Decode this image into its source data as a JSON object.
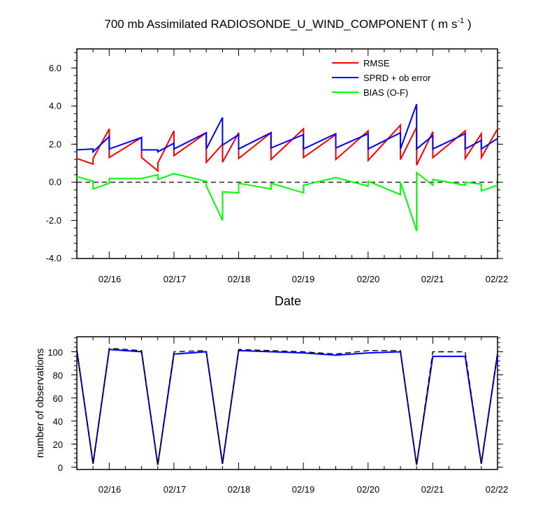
{
  "header": {
    "title_main": "700 mb Assimilated RADIOSONDE_U_WIND_COMPONENT ( m s",
    "title_sup": "-1",
    "title_end": " )"
  },
  "top_panel": {
    "xlabel": "Date",
    "ytick_labels": [
      "6.0",
      "4.0",
      "2.0",
      "0.0",
      "-2.0",
      "-4.0"
    ],
    "xtick_labels": [
      "02/16",
      "02/17",
      "02/18",
      "02/19",
      "02/20",
      "02/21",
      "02/22"
    ]
  },
  "bottom_panel": {
    "ylabel": "number of observations",
    "ytick_labels": [
      "100",
      "80",
      "60",
      "40",
      "20",
      "0"
    ],
    "xtick_labels": [
      "02/16",
      "02/17",
      "02/18",
      "02/19",
      "02/20",
      "02/21",
      "02/22"
    ]
  },
  "legend": [
    {
      "label": "RMSE",
      "color": "#ff0000"
    },
    {
      "label": "SPRD + ob error",
      "color": "#0000ff"
    },
    {
      "label": "BIAS (O-F)",
      "color": "#00ff00"
    }
  ],
  "colors": {
    "rmse": "#ff0000",
    "sprd": "#0000ff",
    "bias": "#00ff00",
    "reference": "#000000"
  },
  "chart_data": [
    {
      "type": "line",
      "title": "700 mb Assimilated RADIOSONDE_U_WIND_COMPONENT ( m s-1 )",
      "xlabel": "Date",
      "ylabel": "",
      "xlim": [
        "02/15 12:00",
        "02/22 00:00"
      ],
      "ylim": [
        -4.0,
        7.0
      ],
      "legend_position": "top-right",
      "reference_line": {
        "y": 0.0,
        "style": "dashed"
      },
      "series": [
        {
          "name": "RMSE",
          "color": "#ff0000",
          "points": [
            [
              "02/15 12:00",
              1.25
            ],
            [
              "02/15 18:00",
              0.95
            ],
            [
              "02/15 18:00",
              1.25
            ],
            [
              "02/16 00:00",
              2.8
            ],
            [
              "02/16 00:00",
              1.3
            ],
            [
              "02/16 12:00",
              2.35
            ],
            [
              "02/16 12:00",
              1.3
            ],
            [
              "02/16 18:00",
              0.6
            ],
            [
              "02/16 18:00",
              1.0
            ],
            [
              "02/17 00:00",
              2.7
            ],
            [
              "02/17 00:00",
              1.4
            ],
            [
              "02/17 12:00",
              2.6
            ],
            [
              "02/17 12:00",
              1.05
            ],
            [
              "02/17 18:00",
              2.0
            ],
            [
              "02/17 18:00",
              1.05
            ],
            [
              "02/18 00:00",
              2.6
            ],
            [
              "02/18 00:00",
              1.25
            ],
            [
              "02/18 12:00",
              2.6
            ],
            [
              "02/18 12:00",
              1.2
            ],
            [
              "02/19 00:00",
              2.8
            ],
            [
              "02/19 00:00",
              1.3
            ],
            [
              "02/19 12:00",
              2.5
            ],
            [
              "02/19 12:00",
              1.2
            ],
            [
              "02/20 00:00",
              2.7
            ],
            [
              "02/20 00:00",
              1.15
            ],
            [
              "02/20 12:00",
              3.0
            ],
            [
              "02/20 12:00",
              1.2
            ],
            [
              "02/20 18:00",
              2.9
            ],
            [
              "02/20 18:00",
              0.9
            ],
            [
              "02/21 00:00",
              2.65
            ],
            [
              "02/21 00:00",
              1.3
            ],
            [
              "02/21 12:00",
              2.7
            ],
            [
              "02/21 12:00",
              1.25
            ],
            [
              "02/21 18:00",
              2.55
            ],
            [
              "02/21 18:00",
              1.3
            ],
            [
              "02/22 00:00",
              2.8
            ]
          ]
        },
        {
          "name": "SPRD + ob error",
          "color": "#0000ff",
          "points": [
            [
              "02/15 12:00",
              1.7
            ],
            [
              "02/15 18:00",
              1.75
            ],
            [
              "02/15 18:00",
              1.6
            ],
            [
              "02/16 00:00",
              2.4
            ],
            [
              "02/16 00:00",
              1.75
            ],
            [
              "02/16 12:00",
              2.35
            ],
            [
              "02/16 12:00",
              1.7
            ],
            [
              "02/16 18:00",
              1.7
            ],
            [
              "02/16 18:00",
              1.6
            ],
            [
              "02/17 00:00",
              2.05
            ],
            [
              "02/17 00:00",
              1.75
            ],
            [
              "02/17 12:00",
              2.6
            ],
            [
              "02/17 12:00",
              1.75
            ],
            [
              "02/17 18:00",
              3.4
            ],
            [
              "02/17 18:00",
              1.95
            ],
            [
              "02/18 00:00",
              2.5
            ],
            [
              "02/18 00:00",
              1.75
            ],
            [
              "02/18 12:00",
              2.6
            ],
            [
              "02/18 12:00",
              1.8
            ],
            [
              "02/19 00:00",
              2.5
            ],
            [
              "02/19 00:00",
              1.75
            ],
            [
              "02/19 12:00",
              2.55
            ],
            [
              "02/19 12:00",
              1.8
            ],
            [
              "02/20 00:00",
              2.55
            ],
            [
              "02/20 00:00",
              1.75
            ],
            [
              "02/20 12:00",
              2.6
            ],
            [
              "02/20 12:00",
              1.75
            ],
            [
              "02/20 18:00",
              4.1
            ],
            [
              "02/20 18:00",
              1.75
            ],
            [
              "02/21 00:00",
              2.45
            ],
            [
              "02/21 00:00",
              1.75
            ],
            [
              "02/21 12:00",
              2.55
            ],
            [
              "02/21 12:00",
              1.75
            ],
            [
              "02/21 18:00",
              2.2
            ],
            [
              "02/21 18:00",
              1.75
            ],
            [
              "02/22 00:00",
              2.3
            ]
          ]
        },
        {
          "name": "BIAS (O-F)",
          "color": "#00ff00",
          "points": [
            [
              "02/15 12:00",
              0.3
            ],
            [
              "02/15 18:00",
              0.05
            ],
            [
              "02/15 18:00",
              -0.35
            ],
            [
              "02/16 00:00",
              -0.05
            ],
            [
              "02/16 00:00",
              0.2
            ],
            [
              "02/16 12:00",
              0.2
            ],
            [
              "02/16 18:00",
              0.4
            ],
            [
              "02/16 18:00",
              0.15
            ],
            [
              "02/17 00:00",
              0.45
            ],
            [
              "02/17 12:00",
              0.05
            ],
            [
              "02/17 12:00",
              -0.2
            ],
            [
              "02/17 18:00",
              -2.0
            ],
            [
              "02/17 18:00",
              -0.5
            ],
            [
              "02/18 00:00",
              -0.55
            ],
            [
              "02/18 00:00",
              -0.05
            ],
            [
              "02/18 12:00",
              -0.35
            ],
            [
              "02/18 12:00",
              -0.05
            ],
            [
              "02/19 00:00",
              -0.55
            ],
            [
              "02/19 00:00",
              -0.15
            ],
            [
              "02/19 12:00",
              0.25
            ],
            [
              "02/20 00:00",
              -0.2
            ],
            [
              "02/20 00:00",
              0.05
            ],
            [
              "02/20 12:00",
              -0.65
            ],
            [
              "02/20 12:00",
              0.0
            ],
            [
              "02/20 18:00",
              -2.55
            ],
            [
              "02/20 18:00",
              0.5
            ],
            [
              "02/21 00:00",
              -0.15
            ],
            [
              "02/21 00:00",
              0.15
            ],
            [
              "02/21 12:00",
              -0.15
            ],
            [
              "02/21 12:00",
              0.0
            ],
            [
              "02/21 18:00",
              -0.1
            ],
            [
              "02/21 18:00",
              -0.45
            ],
            [
              "02/22 00:00",
              -0.15
            ]
          ]
        }
      ]
    },
    {
      "type": "line",
      "title": "",
      "xlabel": "",
      "ylabel": "number of observations",
      "xlim": [
        "02/15 12:00",
        "02/22 00:00"
      ],
      "ylim": [
        -2,
        113
      ],
      "series": [
        {
          "color": "#0000ff",
          "style": "solid",
          "points": [
            [
              "02/15 12:00",
              101
            ],
            [
              "02/15 18:00",
              3
            ],
            [
              "02/16 00:00",
              102
            ],
            [
              "02/16 12:00",
              100
            ],
            [
              "02/16 18:00",
              2
            ],
            [
              "02/17 00:00",
              98
            ],
            [
              "02/17 12:00",
              100
            ],
            [
              "02/17 18:00",
              3
            ],
            [
              "02/18 00:00",
              101
            ],
            [
              "02/19 00:00",
              99
            ],
            [
              "02/19 12:00",
              97
            ],
            [
              "02/20 00:00",
              99
            ],
            [
              "02/20 12:00",
              100
            ],
            [
              "02/20 18:00",
              2
            ],
            [
              "02/21 00:00",
              96
            ],
            [
              "02/21 12:00",
              96
            ],
            [
              "02/21 18:00",
              3
            ],
            [
              "02/22 00:00",
              98
            ]
          ]
        },
        {
          "color": "#000000",
          "style": "dashed",
          "points": [
            [
              "02/15 12:00",
              102
            ],
            [
              "02/15 18:00",
              3
            ],
            [
              "02/16 00:00",
              103
            ],
            [
              "02/16 12:00",
              101
            ],
            [
              "02/16 18:00",
              2
            ],
            [
              "02/17 00:00",
              100
            ],
            [
              "02/17 12:00",
              101
            ],
            [
              "02/17 18:00",
              3
            ],
            [
              "02/18 00:00",
              102
            ],
            [
              "02/19 00:00",
              100
            ],
            [
              "02/19 12:00",
              98
            ],
            [
              "02/20 00:00",
              101
            ],
            [
              "02/20 12:00",
              101
            ],
            [
              "02/20 18:00",
              2
            ],
            [
              "02/21 00:00",
              100
            ],
            [
              "02/21 12:00",
              100
            ],
            [
              "02/21 18:00",
              3
            ],
            [
              "02/22 00:00",
              99
            ]
          ]
        }
      ]
    }
  ]
}
